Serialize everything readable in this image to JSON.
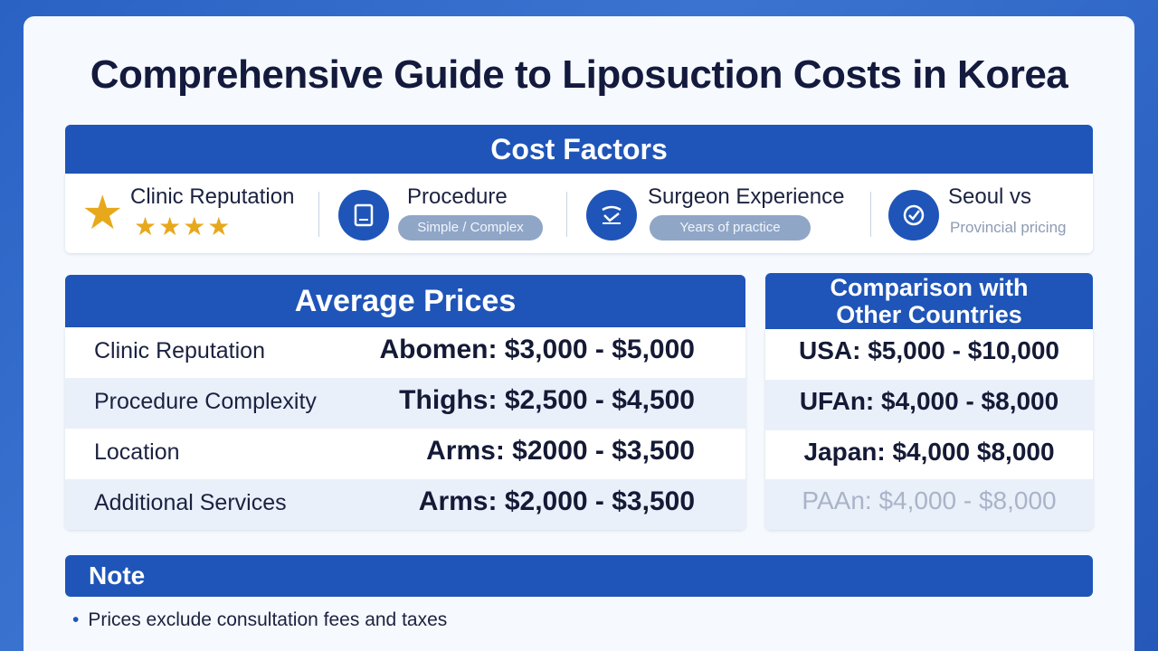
{
  "title": "Comprehensive Guide to Liposuction Costs in Korea",
  "cost_factors": {
    "header": "Cost Factors",
    "items": [
      {
        "label": "Clinic Reputation",
        "stars": "★★★★",
        "icon": "star-icon"
      },
      {
        "label": "Procedure",
        "pill": "Simple / Complex",
        "icon": "document-icon"
      },
      {
        "label": "Surgeon Experience",
        "pill": "Years of practice",
        "icon": "surgeon-icon"
      },
      {
        "label": "Seoul vs",
        "sub": "Provincial pricing",
        "icon": "location-icon"
      }
    ]
  },
  "average_prices": {
    "header": "Average Prices",
    "rows": [
      {
        "factor": "Clinic Reputation",
        "price": "Abomen: $3,000 - $5,000"
      },
      {
        "factor": "Procedure Complexity",
        "price": "Thighs:  $2,500 - $4,500"
      },
      {
        "factor": "Location",
        "price": "Arms:  $2000 - $3,500"
      },
      {
        "factor": "Additional Services",
        "price": "Arms:  $2,000 - $3,500"
      }
    ]
  },
  "comparison": {
    "header_line1": "Comparison with",
    "header_line2": "Other Countries",
    "rows": [
      {
        "text": "USA:  $5,000 - $10,000"
      },
      {
        "text": "UFAn:  $4,000 - $8,000"
      },
      {
        "text": "Japan: $4,000   $8,000"
      },
      {
        "text": "PAAn: $4,000 - $8,000"
      }
    ]
  },
  "note": {
    "header": "Note",
    "items": [
      "Prices exclude consultation fees and taxes"
    ]
  },
  "colors": {
    "accent": "#1f55b8",
    "star": "#e8a81c",
    "background": "#2a62c4"
  }
}
